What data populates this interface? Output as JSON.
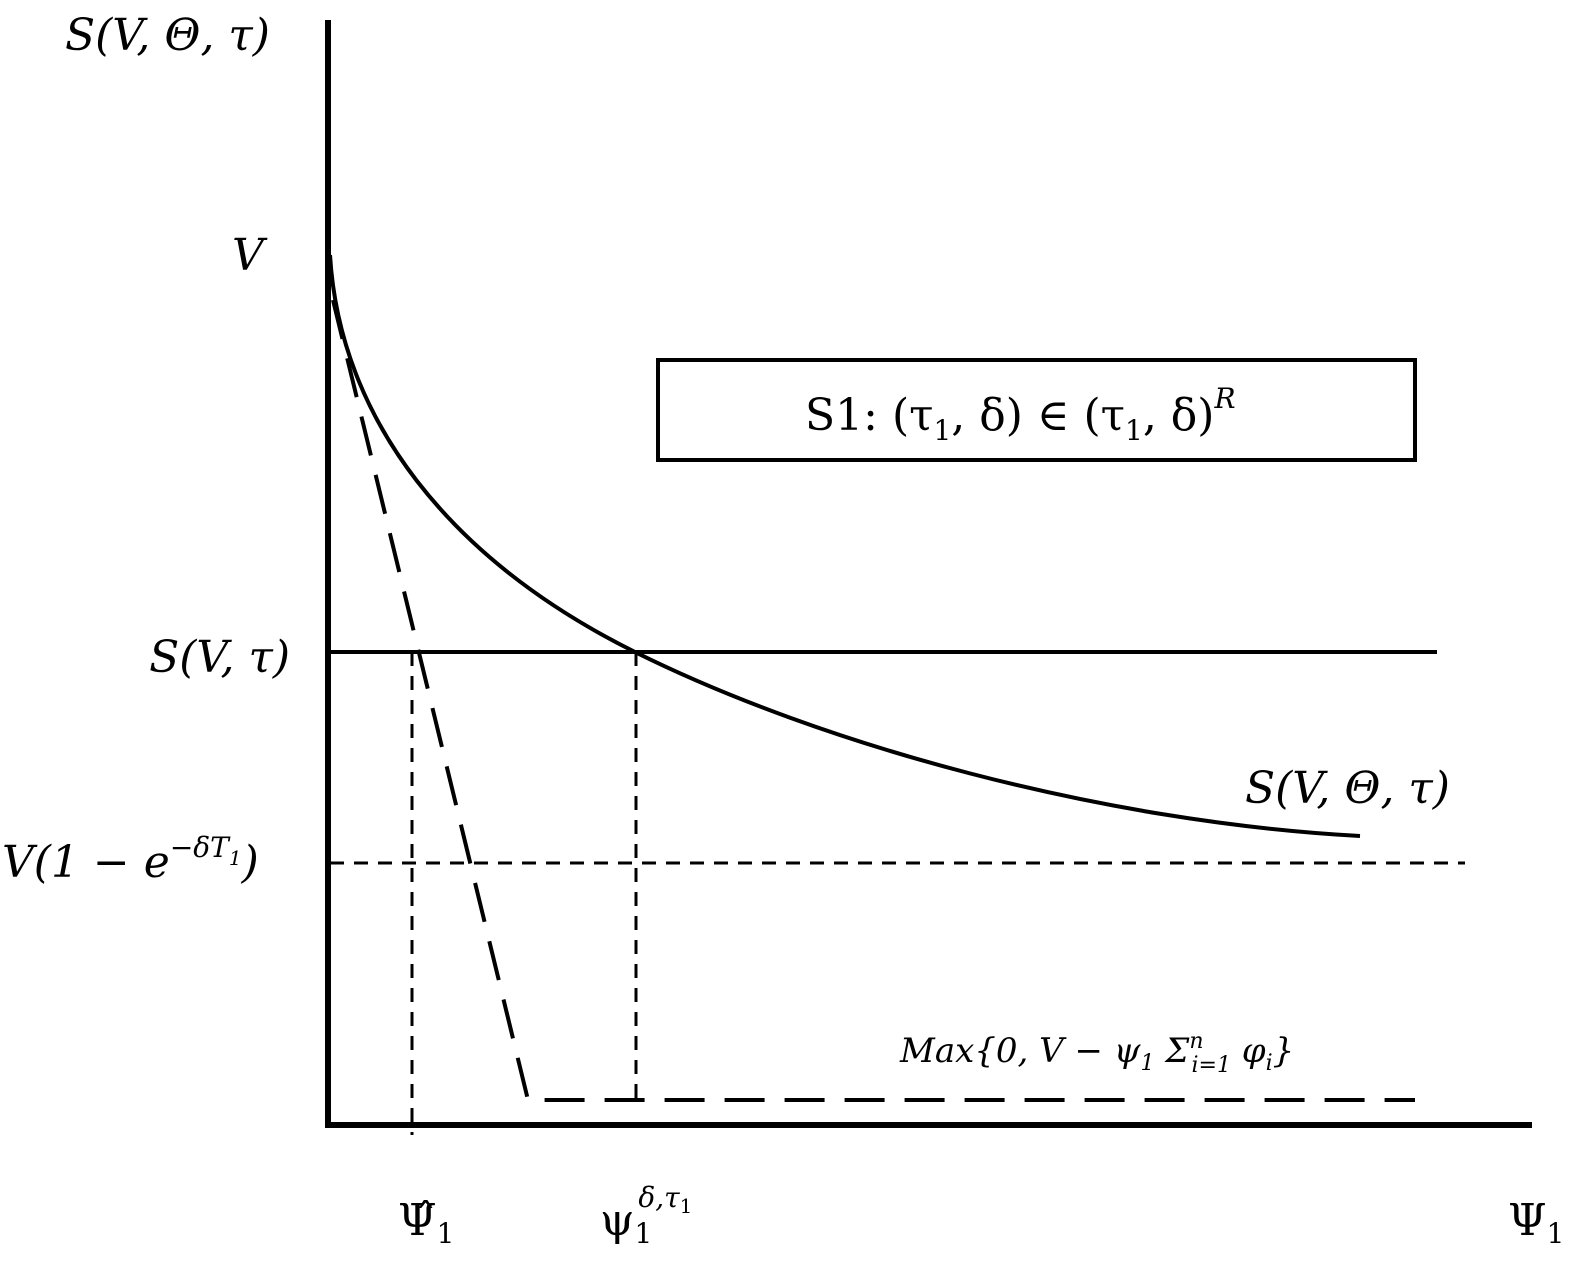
{
  "y_axis_label": "S(V, Θ, τ)",
  "y_labels": {
    "v": "V",
    "s_v_tau": "S(V, τ)",
    "floor": {
      "main": "V(1 − e",
      "sup": "−δT",
      "sup_sub": "1",
      "end": ")"
    }
  },
  "box": {
    "main": "S1: (τ",
    "sub1": "1",
    "mid": ", δ) ∈ (τ",
    "sub2": "1",
    "end": ", δ)",
    "sup": "R"
  },
  "curve_label": "S(V, Θ, τ)",
  "max_label": {
    "main": "Max{0, V − ψ",
    "sub1": "1",
    "sigma": " Σ",
    "sup": "n",
    "sub2": "i=1",
    "end": " φ",
    "sub3": "i",
    "close": "}"
  },
  "x_labels": {
    "psi_hat": {
      "main": "Ψ̂",
      "sub": "1"
    },
    "psi_delta": {
      "main": "ψ",
      "sub": "1",
      "sup": "δ,τ",
      "sup_sub": "1"
    },
    "psi_axis": {
      "main": "Ψ",
      "sub": "1"
    }
  }
}
